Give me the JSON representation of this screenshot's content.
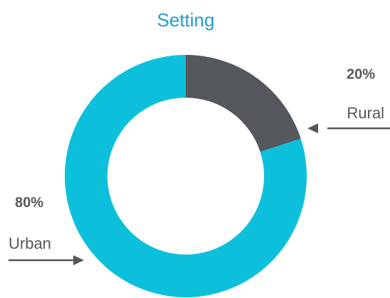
{
  "chart_data": {
    "type": "pie",
    "donut": true,
    "title": "Setting",
    "categories": [
      "Rural",
      "Urban"
    ],
    "values": [
      20,
      80
    ],
    "value_labels": [
      "20%",
      "80%"
    ],
    "colors": [
      "#54575c",
      "#0cc0dc"
    ]
  }
}
